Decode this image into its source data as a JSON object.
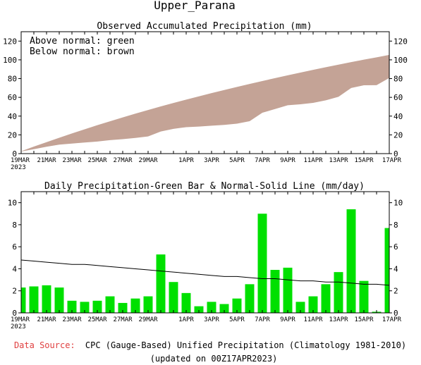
{
  "title": "Upper_Parana",
  "x_tick_labels": [
    "19MAR",
    "21MAR",
    "23MAR",
    "25MAR",
    "27MAR",
    "29MAR",
    "1APR",
    "3APR",
    "5APR",
    "7APR",
    "9APR",
    "11APR",
    "13APR",
    "15APR",
    "17APR"
  ],
  "x_year_label": "2023",
  "footer": {
    "source_label": "Data Source:",
    "source_text": "CPC (Gauge-Based) Unified Precipitation (Climatology 1981-2010)",
    "updated": "(updated on 00Z17APR2023)"
  },
  "colors": {
    "below_normal": "#c4a396",
    "above_normal": "#00ff00",
    "bar": "#00e000",
    "normal_line": "#000000",
    "source_label": "#e04040"
  },
  "chart_data": [
    {
      "type": "area",
      "title": "Observed Accumulated Precipitation (mm)",
      "legend": [
        "Above normal: green",
        "Below normal: brown"
      ],
      "legend_position": "top-left",
      "x": [
        "19MAR",
        "20MAR",
        "21MAR",
        "22MAR",
        "23MAR",
        "24MAR",
        "25MAR",
        "26MAR",
        "27MAR",
        "28MAR",
        "29MAR",
        "30MAR",
        "31MAR",
        "1APR",
        "2APR",
        "3APR",
        "4APR",
        "5APR",
        "6APR",
        "7APR",
        "8APR",
        "9APR",
        "10APR",
        "11APR",
        "12APR",
        "13APR",
        "14APR",
        "15APR",
        "16APR",
        "17APR"
      ],
      "series": [
        {
          "name": "Normal",
          "values": [
            2.5,
            7.5,
            12.2,
            16.9,
            21.5,
            25.9,
            30.3,
            34.5,
            38.6,
            42.6,
            46.5,
            50.3,
            54.0,
            57.6,
            61.1,
            64.5,
            67.8,
            71.1,
            74.3,
            77.4,
            80.5,
            83.5,
            86.4,
            89.3,
            92.1,
            94.9,
            97.6,
            100.2,
            102.7,
            105.3
          ]
        },
        {
          "name": "Observed",
          "values": [
            2.3,
            4.7,
            7.3,
            9.6,
            10.7,
            11.8,
            12.9,
            14.4,
            15.4,
            16.7,
            18.3,
            23.6,
            26.4,
            28.2,
            28.8,
            29.8,
            30.6,
            31.9,
            34.6,
            43.6,
            47.5,
            51.6,
            52.6,
            54.1,
            56.8,
            60.6,
            70.0,
            72.9,
            73.0,
            80.7
          ]
        }
      ],
      "ylim": [
        0,
        130
      ],
      "yticks": [
        0,
        20,
        40,
        60,
        80,
        100,
        120
      ]
    },
    {
      "type": "bar",
      "title": "Daily Precipitation-Green Bar & Normal-Solid Line (mm/day)",
      "categories": [
        "19MAR",
        "20MAR",
        "21MAR",
        "22MAR",
        "23MAR",
        "24MAR",
        "25MAR",
        "26MAR",
        "27MAR",
        "28MAR",
        "29MAR",
        "30MAR",
        "31MAR",
        "1APR",
        "2APR",
        "3APR",
        "4APR",
        "5APR",
        "6APR",
        "7APR",
        "8APR",
        "9APR",
        "10APR",
        "11APR",
        "12APR",
        "13APR",
        "14APR",
        "15APR",
        "16APR",
        "17APR"
      ],
      "series": [
        {
          "name": "Daily",
          "values": [
            2.3,
            2.4,
            2.5,
            2.3,
            1.1,
            1.0,
            1.1,
            1.5,
            0.9,
            1.3,
            1.5,
            5.3,
            2.8,
            1.8,
            0.6,
            1.0,
            0.8,
            1.3,
            2.6,
            9.0,
            3.9,
            4.1,
            1.0,
            1.5,
            2.6,
            3.7,
            9.4,
            2.9,
            0.1,
            7.7
          ]
        },
        {
          "name": "Normal",
          "values": [
            4.8,
            4.7,
            4.6,
            4.5,
            4.4,
            4.4,
            4.3,
            4.2,
            4.1,
            4.0,
            3.9,
            3.8,
            3.7,
            3.6,
            3.5,
            3.4,
            3.3,
            3.3,
            3.2,
            3.1,
            3.1,
            3.0,
            2.9,
            2.9,
            2.8,
            2.8,
            2.7,
            2.6,
            2.6,
            2.5
          ]
        }
      ],
      "ylim": [
        0,
        11
      ],
      "yticks": [
        0,
        2,
        4,
        6,
        8,
        10
      ]
    }
  ]
}
